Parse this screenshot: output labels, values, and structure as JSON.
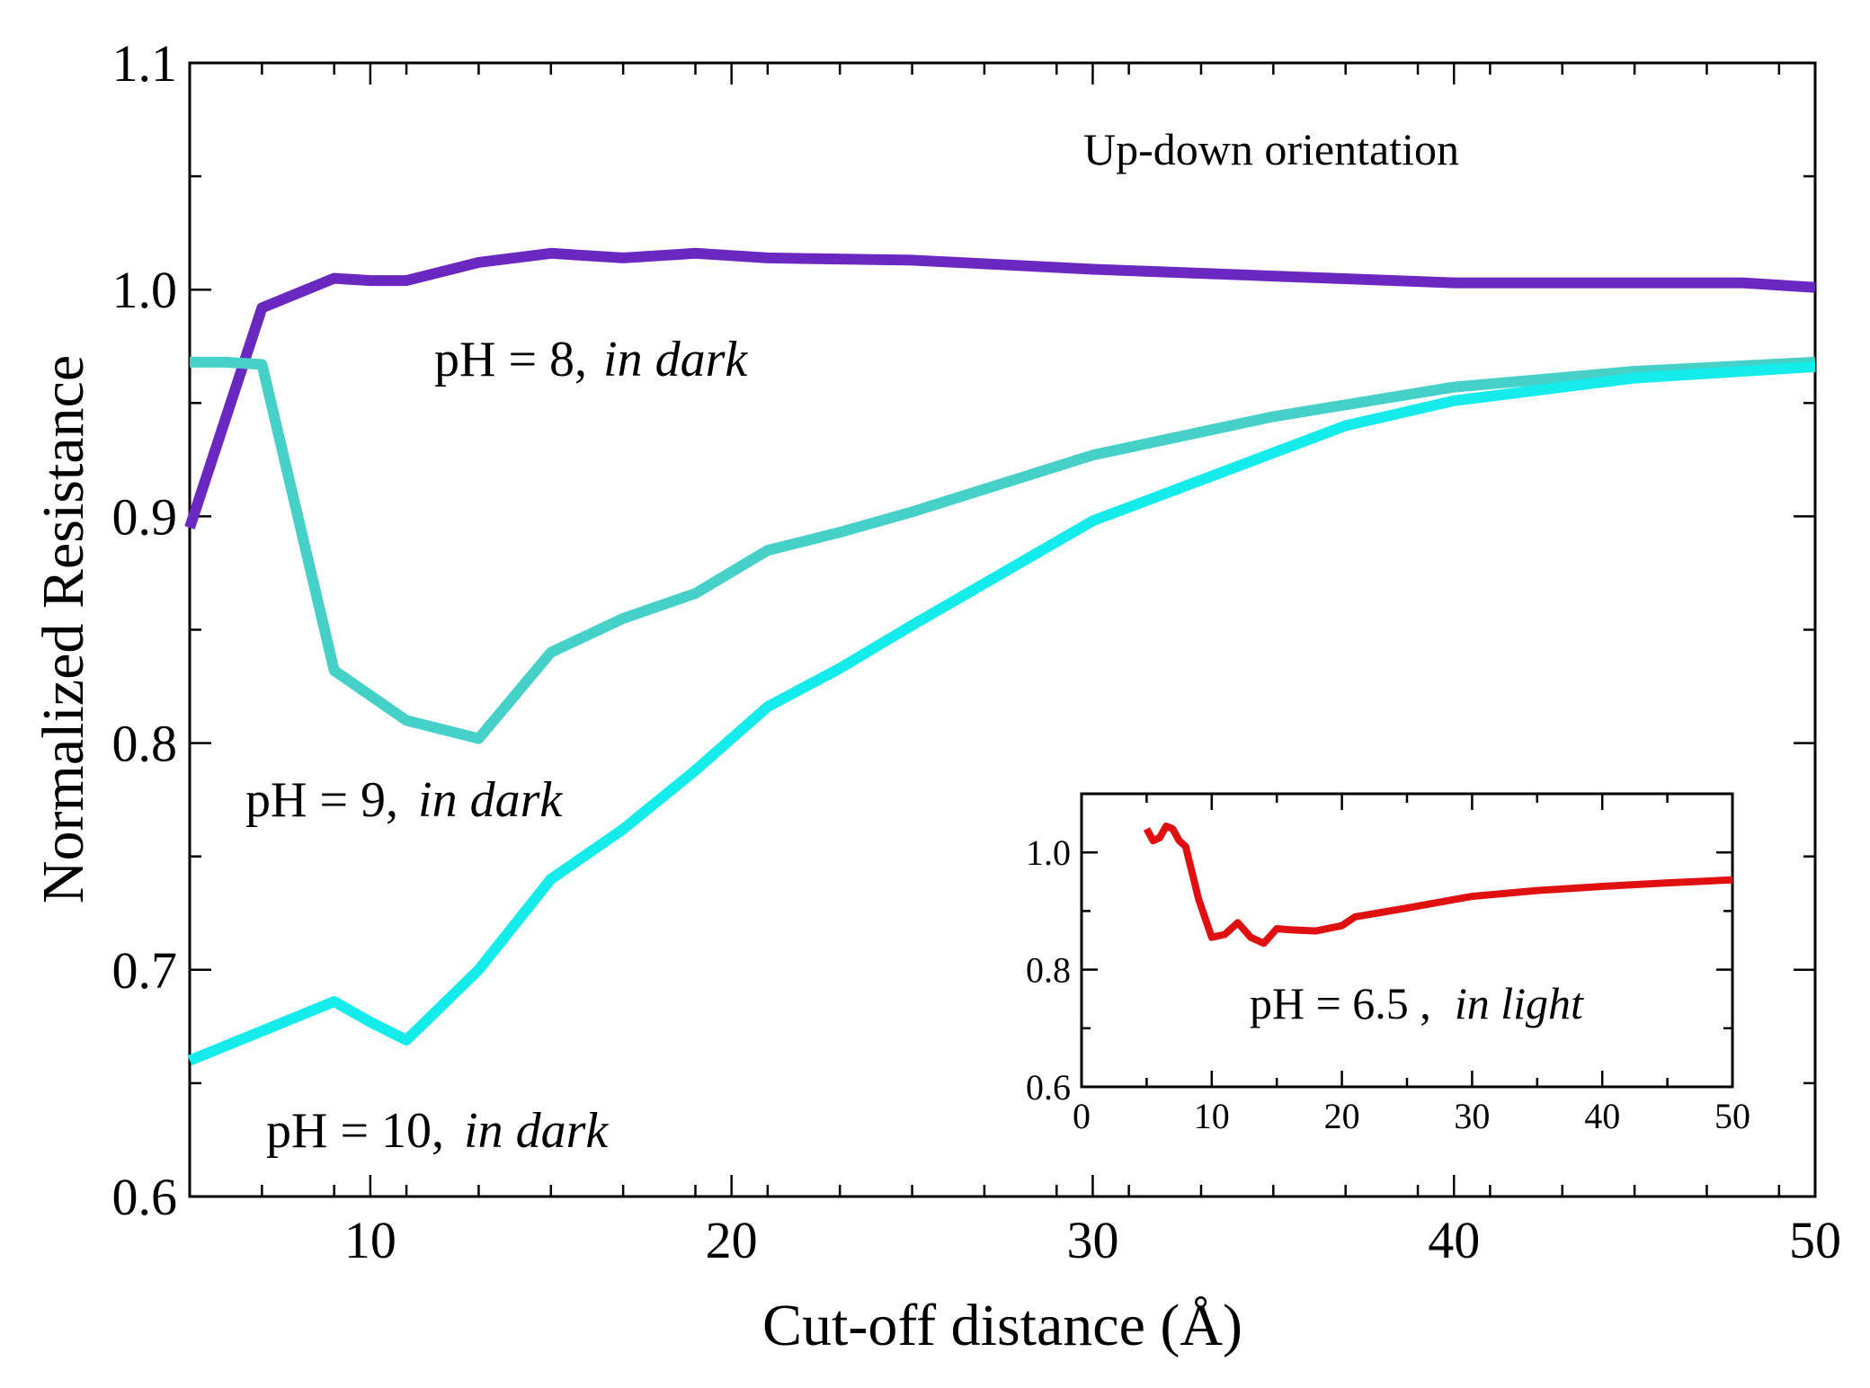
{
  "chart_data": [
    {
      "type": "line",
      "title": "",
      "xlabel": "Cut-off distance (Å)",
      "ylabel": "Normalized Resistance",
      "xlim": [
        5,
        50
      ],
      "ylim": [
        0.6,
        1.1
      ],
      "xticks": [
        10,
        20,
        30,
        40,
        50
      ],
      "xtick_labels": [
        "10",
        "20",
        "30",
        "40",
        "50"
      ],
      "yticks": [
        0.6,
        0.7,
        0.8,
        0.9,
        1.0,
        1.1
      ],
      "ytick_labels": [
        "0.6",
        "0.7",
        "0.8",
        "0.9",
        "1.0",
        "1.1"
      ],
      "annotation_title": "Up-down orientation",
      "series": [
        {
          "name": "pH = 8, in dark",
          "label_main": "pH = 8,",
          "label_italic": "in dark",
          "color": "#6a28c0",
          "x": [
            5,
            7,
            9,
            10,
            11,
            13,
            15,
            17,
            19,
            21,
            25,
            30,
            35,
            40,
            45,
            48,
            50
          ],
          "y": [
            0.895,
            0.992,
            1.005,
            1.004,
            1.004,
            1.012,
            1.016,
            1.014,
            1.016,
            1.014,
            1.013,
            1.009,
            1.006,
            1.003,
            1.003,
            1.003,
            1.001
          ]
        },
        {
          "name": "pH = 9, in dark",
          "label_main": "pH = 9,",
          "label_italic": "in dark",
          "color": "#45d1c7",
          "x": [
            5,
            6,
            7,
            9,
            11,
            13,
            15,
            17,
            19,
            21,
            23,
            25,
            30,
            35,
            40,
            45,
            50
          ],
          "y": [
            0.968,
            0.968,
            0.967,
            0.832,
            0.81,
            0.802,
            0.84,
            0.855,
            0.866,
            0.885,
            0.893,
            0.902,
            0.927,
            0.944,
            0.957,
            0.964,
            0.968
          ]
        },
        {
          "name": "pH = 10, in dark",
          "label_main": "pH = 10,",
          "label_italic": "in dark",
          "color": "#14ecec",
          "x": [
            5,
            7,
            9,
            10,
            11,
            13,
            15,
            17,
            19,
            21,
            23,
            25,
            30,
            35,
            37,
            40,
            45,
            50
          ],
          "y": [
            0.66,
            0.673,
            0.686,
            0.677,
            0.669,
            0.7,
            0.74,
            0.762,
            0.788,
            0.816,
            0.833,
            0.852,
            0.898,
            0.928,
            0.94,
            0.951,
            0.961,
            0.966
          ]
        }
      ],
      "inset": {
        "type": "line",
        "xlim": [
          0,
          50
        ],
        "ylim": [
          0.6,
          1.1
        ],
        "xticks": [
          0,
          10,
          20,
          30,
          40,
          50
        ],
        "xtick_labels": [
          "0",
          "10",
          "20",
          "30",
          "40",
          "50"
        ],
        "yticks": [
          0.6,
          0.8,
          1.0
        ],
        "ytick_labels": [
          "0.6",
          "0.8",
          "1.0"
        ],
        "series": [
          {
            "name": "pH = 6.5, in light",
            "label_main": "pH =  6.5 ,",
            "label_italic": "in light",
            "color": "#e01010",
            "x": [
              5,
              5.5,
              6,
              6.5,
              7,
              7.5,
              8,
              9,
              10,
              11,
              12,
              13,
              14,
              15,
              16,
              18,
              20,
              21,
              25,
              30,
              35,
              40,
              45,
              50
            ],
            "y": [
              1.04,
              1.02,
              1.025,
              1.045,
              1.04,
              1.02,
              1.01,
              0.92,
              0.855,
              0.86,
              0.88,
              0.855,
              0.845,
              0.87,
              0.868,
              0.866,
              0.875,
              0.89,
              0.905,
              0.925,
              0.935,
              0.942,
              0.948,
              0.953
            ]
          }
        ]
      }
    }
  ]
}
